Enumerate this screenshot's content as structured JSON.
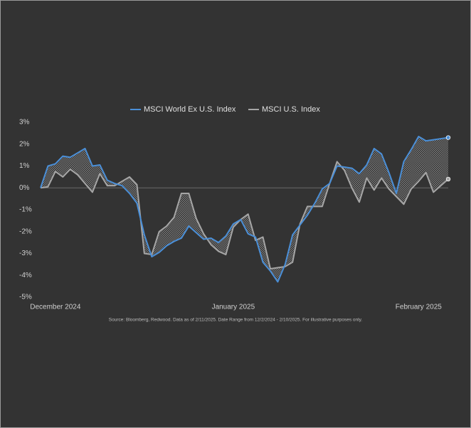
{
  "chart_data": {
    "type": "line",
    "source": "Source: Bloomberg, Redwood. Data as of 2/11/2025. Date Range from 12/2/2024 - 2/10/2025. For illustrative purposes only.",
    "categories": [
      null,
      null,
      "December 2024",
      null,
      null,
      null,
      null,
      null,
      null,
      null,
      null,
      null,
      null,
      null,
      null,
      null,
      null,
      null,
      null,
      null,
      null,
      null,
      null,
      null,
      null,
      null,
      "January 2025",
      null,
      null,
      null,
      null,
      null,
      null,
      null,
      null,
      null,
      null,
      null,
      null,
      null,
      null,
      null,
      null,
      null,
      null,
      null,
      null,
      null,
      null,
      null,
      null,
      "February 2025",
      null,
      null,
      null,
      null
    ],
    "series": [
      {
        "name": "MSCI World Ex U.S. Index",
        "color": "#4a8fd8",
        "values": [
          0,
          1.0,
          1.1,
          1.45,
          1.4,
          1.6,
          1.8,
          1.0,
          1.05,
          0.35,
          0.2,
          0.1,
          -0.25,
          -0.7,
          -2.15,
          -3.15,
          -2.95,
          -2.65,
          -2.45,
          -2.3,
          -1.75,
          -2.05,
          -2.35,
          -2.3,
          -2.5,
          -2.2,
          -1.65,
          -1.45,
          -2.1,
          -2.25,
          -3.4,
          -3.8,
          -4.3,
          -3.5,
          -2.15,
          -1.7,
          -1.25,
          -0.7,
          -0.05,
          0.2,
          1.0,
          0.95,
          0.9,
          0.65,
          1.05,
          1.8,
          1.55,
          0.7,
          -0.25,
          1.2,
          1.75,
          2.35,
          2.15,
          2.2,
          2.25,
          2.3
        ]
      },
      {
        "name": "MSCI U.S. Index",
        "color": "#a6a6a6",
        "values": [
          0,
          0.05,
          0.75,
          0.5,
          0.85,
          0.6,
          0.2,
          -0.2,
          0.65,
          0.1,
          0.1,
          0.3,
          0.5,
          0.15,
          -3.0,
          -3.05,
          -2.0,
          -1.75,
          -1.35,
          -0.25,
          -0.25,
          -1.4,
          -2.1,
          -2.6,
          -2.9,
          -3.05,
          -1.8,
          -1.45,
          -1.2,
          -2.4,
          -2.25,
          -3.7,
          -3.65,
          -3.6,
          -3.4,
          -1.65,
          -0.85,
          -0.85,
          -0.85,
          0.2,
          1.2,
          0.8,
          0,
          -0.65,
          0.45,
          -0.1,
          0.45,
          -0.05,
          -0.4,
          -0.75,
          -0.05,
          0.3,
          0.7,
          -0.2,
          0.1,
          0.4
        ]
      }
    ],
    "ylim": [
      -5,
      3
    ],
    "yticks": [
      {
        "value": 3,
        "label": "3%"
      },
      {
        "value": 2,
        "label": "2%"
      },
      {
        "value": 1,
        "label": "1%"
      },
      {
        "value": 0,
        "label": "0%"
      },
      {
        "value": -1,
        "label": "-1%"
      },
      {
        "value": -2,
        "label": "-2%"
      },
      {
        "value": -3,
        "label": "-3%"
      },
      {
        "value": -4,
        "label": "-4%"
      },
      {
        "value": -5,
        "label": "-5%"
      }
    ]
  }
}
